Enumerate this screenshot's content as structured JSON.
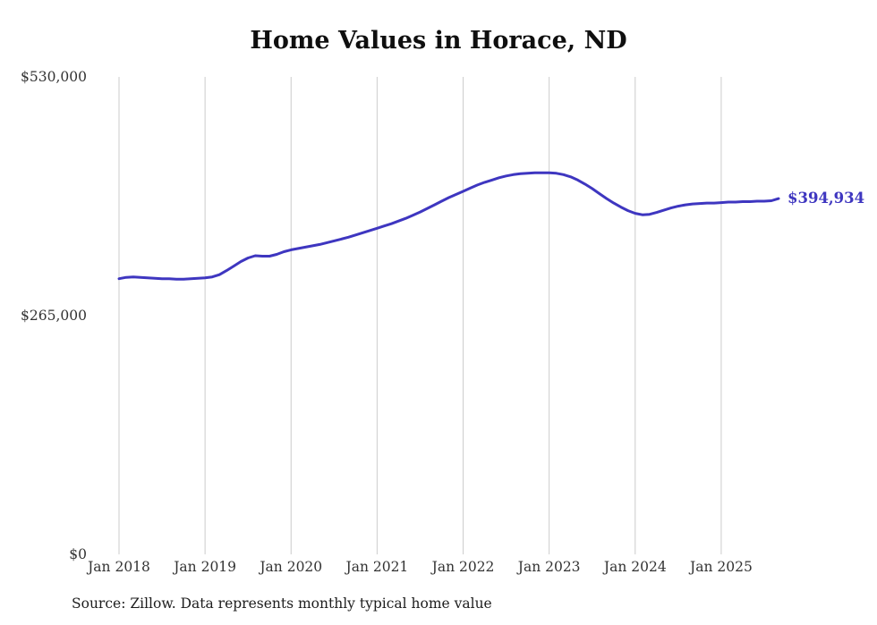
{
  "colors": {
    "background": "#ffffff",
    "line": "#3e36c0",
    "grid": "#cccccc",
    "title_text": "#0f0f0f",
    "axis_text": "#333333",
    "final_label_text": "#3e36c0",
    "source_text": "#1d1d1d"
  },
  "annotation": {
    "final_value_label": "$394,934"
  },
  "footer": {
    "source_note": "Source: Zillow. Data represents monthly typical home value"
  },
  "chart_data": {
    "type": "line",
    "title": "Home Values in Horace, ND",
    "x_unit": "month",
    "x_start_label": "Jan 2018",
    "x_end_label": "Sep 2025",
    "grid": "vertical-only",
    "legend": "none",
    "ylim": [
      0,
      530000
    ],
    "y_ticks": [
      {
        "label": "$0",
        "value": 0
      },
      {
        "label": "$265,000",
        "value": 265000
      },
      {
        "label": "$530,000",
        "value": 530000
      }
    ],
    "x_ticks": [
      {
        "label": "Jan 2018",
        "month_index": 0
      },
      {
        "label": "Jan 2019",
        "month_index": 12
      },
      {
        "label": "Jan 2020",
        "month_index": 24
      },
      {
        "label": "Jan 2021",
        "month_index": 36
      },
      {
        "label": "Jan 2022",
        "month_index": 48
      },
      {
        "label": "Jan 2023",
        "month_index": 60
      },
      {
        "label": "Jan 2024",
        "month_index": 72
      },
      {
        "label": "Jan 2025",
        "month_index": 84
      }
    ],
    "final_value": 394934,
    "series": [
      {
        "name": "Typical home value (USD)",
        "values": [
          306000,
          307500,
          308000,
          307500,
          307000,
          306500,
          306000,
          306000,
          305500,
          305500,
          306000,
          306500,
          307000,
          308000,
          310500,
          315000,
          320000,
          325000,
          329000,
          331500,
          331000,
          331000,
          333000,
          336000,
          338000,
          339500,
          341000,
          342500,
          344000,
          346000,
          348000,
          350000,
          352000,
          354500,
          357000,
          359500,
          362000,
          364500,
          367000,
          370000,
          373000,
          376500,
          380000,
          384000,
          388000,
          392000,
          396000,
          399500,
          403000,
          406500,
          410000,
          413000,
          415500,
          418000,
          420000,
          421500,
          422500,
          423000,
          423500,
          423500,
          423500,
          423000,
          421500,
          419000,
          415500,
          411000,
          406000,
          400500,
          395000,
          390000,
          385500,
          381500,
          378500,
          377000,
          377500,
          379500,
          382000,
          384500,
          386500,
          388000,
          389000,
          389500,
          390000,
          390000,
          390500,
          391000,
          391000,
          391500,
          391500,
          392000,
          392000,
          392500,
          394934
        ]
      }
    ]
  }
}
